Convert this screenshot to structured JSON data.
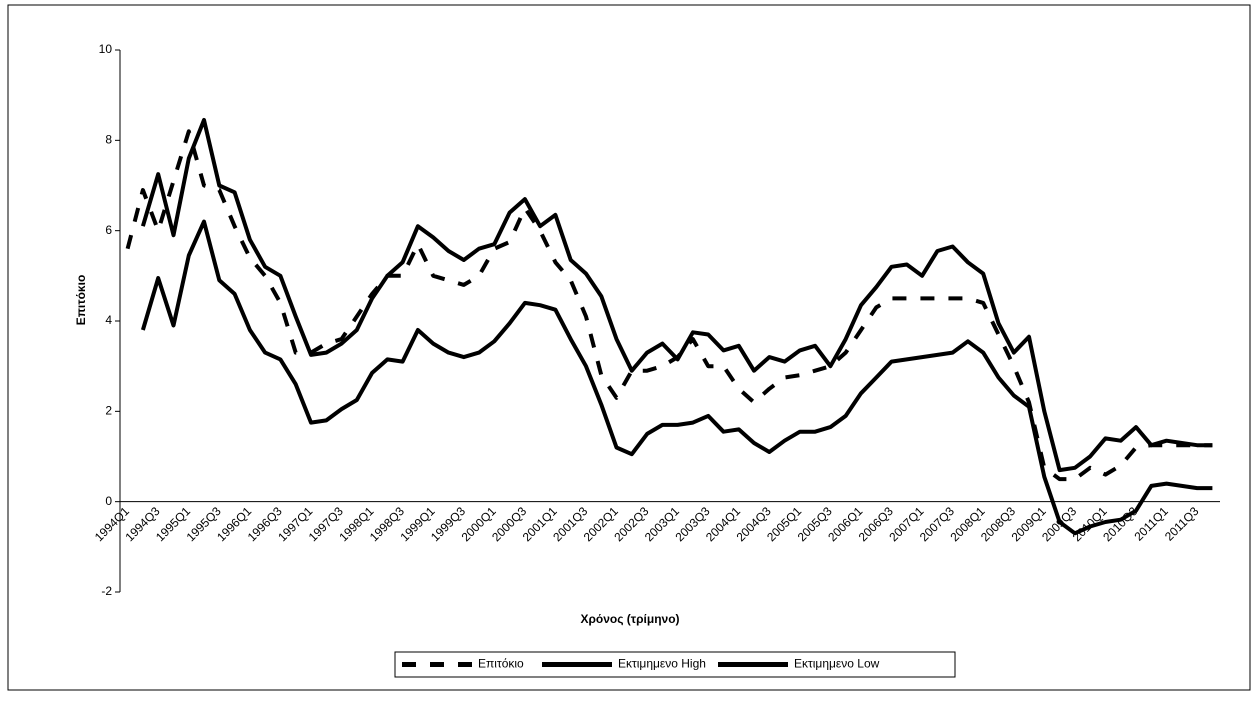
{
  "chart_data": {
    "type": "line",
    "x_label": "Χρόνος (τρίμηνο)",
    "y_label": "Επιτόκιο",
    "categories": [
      "1994Q1",
      null,
      "1994Q3",
      null,
      "1995Q1",
      null,
      "1995Q3",
      null,
      "1996Q1",
      null,
      "1996Q3",
      null,
      "1997Q1",
      null,
      "1997Q3",
      null,
      "1998Q1",
      null,
      "1998Q3",
      null,
      "1999Q1",
      null,
      "1999Q3",
      null,
      "2000Q1",
      null,
      "2000Q3",
      null,
      "2001Q1",
      null,
      "2001Q3",
      null,
      "2002Q1",
      null,
      "2002Q3",
      null,
      "2003Q1",
      null,
      "2003Q3",
      null,
      "2004Q1",
      null,
      "2004Q3",
      null,
      "2005Q1",
      null,
      "2005Q3",
      null,
      "2006Q1",
      null,
      "2006Q3",
      null,
      "2007Q1",
      null,
      "2007Q3",
      null,
      "2008Q1",
      null,
      "2008Q3",
      null,
      "2009Q1",
      null,
      "2009Q3",
      null,
      "2010Q1",
      null,
      "2010Q3",
      null,
      "2011Q1",
      null,
      "2011Q3",
      null
    ],
    "series": [
      {
        "name": "Επιτόκιο",
        "color": "#000000",
        "dashed": true,
        "values": [
          5.6,
          6.9,
          6.0,
          7.1,
          8.2,
          7.0,
          6.9,
          6.1,
          5.4,
          5.0,
          4.4,
          3.3,
          3.3,
          3.5,
          3.6,
          4.1,
          4.6,
          5.0,
          5.0,
          5.7,
          5.0,
          4.9,
          4.8,
          5.0,
          5.6,
          5.75,
          6.5,
          6.0,
          5.3,
          4.9,
          4.1,
          2.8,
          2.3,
          2.9,
          2.9,
          3.0,
          3.2,
          3.6,
          3.0,
          3.0,
          2.5,
          2.2,
          2.5,
          2.75,
          2.8,
          2.9,
          3.0,
          3.3,
          3.8,
          4.3,
          4.5,
          4.5,
          4.5,
          4.5,
          4.5,
          4.5,
          4.4,
          3.7,
          3.0,
          2.2,
          0.75,
          0.5,
          0.5,
          0.75,
          0.6,
          0.8,
          1.2,
          1.25,
          1.25,
          1.25,
          1.25,
          1.25
        ]
      },
      {
        "name": "Εκτιμημενο High",
        "color": "#000000",
        "dashed": false,
        "values": [
          null,
          6.1,
          7.25,
          5.9,
          7.6,
          8.45,
          7.0,
          6.85,
          5.8,
          5.2,
          5.0,
          4.1,
          3.25,
          3.3,
          3.5,
          3.8,
          4.5,
          5.0,
          5.3,
          6.1,
          5.85,
          5.55,
          5.35,
          5.6,
          5.7,
          6.4,
          6.7,
          6.1,
          6.35,
          5.35,
          5.05,
          4.55,
          3.6,
          2.9,
          3.3,
          3.5,
          3.15,
          3.75,
          3.7,
          3.35,
          3.45,
          2.9,
          3.2,
          3.1,
          3.35,
          3.45,
          3.0,
          3.6,
          4.35,
          4.75,
          5.2,
          5.25,
          5.0,
          5.55,
          5.65,
          5.3,
          5.05,
          3.95,
          3.3,
          3.65,
          2.0,
          0.7,
          0.75,
          1.0,
          1.4,
          1.35,
          1.65,
          1.25,
          1.35,
          1.3,
          1.25,
          1.25
        ]
      },
      {
        "name": "Εκτιμημενο Low",
        "color": "#000000",
        "dashed": false,
        "values": [
          null,
          3.8,
          4.95,
          3.9,
          5.45,
          6.2,
          4.9,
          4.6,
          3.8,
          3.3,
          3.15,
          2.6,
          1.75,
          1.8,
          2.05,
          2.25,
          2.85,
          3.15,
          3.1,
          3.8,
          3.5,
          3.3,
          3.2,
          3.3,
          3.55,
          3.95,
          4.4,
          4.35,
          4.25,
          3.6,
          3.0,
          2.15,
          1.2,
          1.05,
          1.5,
          1.7,
          1.7,
          1.75,
          1.9,
          1.55,
          1.6,
          1.3,
          1.1,
          1.35,
          1.55,
          1.55,
          1.65,
          1.9,
          2.4,
          2.75,
          3.1,
          3.15,
          3.2,
          3.25,
          3.3,
          3.55,
          3.3,
          2.75,
          2.35,
          2.1,
          0.55,
          -0.45,
          -0.7,
          -0.55,
          -0.45,
          -0.4,
          -0.2,
          0.35,
          0.4,
          0.35,
          0.3,
          0.3
        ]
      }
    ],
    "ylim": [
      -2,
      10
    ],
    "yticks": [
      -2,
      0,
      2,
      4,
      6,
      8,
      10
    ],
    "grid": false,
    "legend": "bottom"
  }
}
